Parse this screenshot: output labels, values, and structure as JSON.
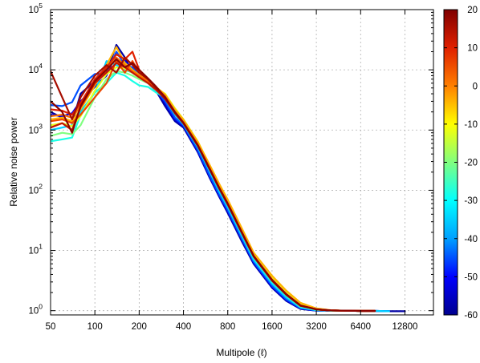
{
  "chart_data": {
    "type": "line",
    "title": "",
    "xlabel": "Multipole (ℓ)",
    "ylabel": "Relative noise power",
    "x_scale": "log2",
    "y_scale": "log10",
    "xlim": [
      50,
      20000
    ],
    "ylim": [
      0.85,
      100000
    ],
    "grid": true,
    "x_ticks": [
      {
        "value": 50,
        "label": "50"
      },
      {
        "value": 100,
        "label": "100"
      },
      {
        "value": 200,
        "label": "200"
      },
      {
        "value": 400,
        "label": "400"
      },
      {
        "value": 800,
        "label": "800"
      },
      {
        "value": 1600,
        "label": "1600"
      },
      {
        "value": 3200,
        "label": "3200"
      },
      {
        "value": 6400,
        "label": "6400"
      },
      {
        "value": 12800,
        "label": "12800"
      }
    ],
    "y_ticks": [
      {
        "value": 1,
        "base": "10",
        "exp": "0"
      },
      {
        "value": 10,
        "base": "10",
        "exp": "1"
      },
      {
        "value": 100,
        "base": "10",
        "exp": "2"
      },
      {
        "value": 1000,
        "base": "10",
        "exp": "3"
      },
      {
        "value": 10000,
        "base": "10",
        "exp": "4"
      },
      {
        "value": 100000,
        "base": "10",
        "exp": "5"
      }
    ],
    "colorbar": {
      "min": -60,
      "max": 20,
      "ticks": [
        "20",
        "10",
        "0",
        "-10",
        "-20",
        "-30",
        "-40",
        "-50",
        "-60"
      ],
      "colormap": [
        "#00008f",
        "#0000ff",
        "#00a0ff",
        "#00ffff",
        "#80ff80",
        "#ffff00",
        "#ff8000",
        "#e02000",
        "#800000"
      ]
    },
    "series": [
      {
        "color_value": -58,
        "x": [
          50,
          60,
          70,
          80,
          100,
          120,
          140,
          160,
          180,
          200,
          230,
          260,
          300,
          350,
          400,
          500,
          600,
          700,
          800,
          1000,
          1200,
          1600,
          2000,
          2500,
          3200,
          4000,
          5000,
          6400,
          8000,
          10000,
          12800
        ],
        "y": [
          2000,
          1600,
          1300,
          4000,
          6500,
          9000,
          26000,
          16000,
          9000,
          7500,
          6000,
          4500,
          2500,
          1400,
          1100,
          430,
          165,
          78,
          42,
          14,
          6.0,
          2.4,
          1.45,
          1.07,
          1.0,
          1.0,
          1.0,
          0.99,
          0.99,
          0.98,
          0.98
        ]
      },
      {
        "color_value": -52,
        "x": [
          50,
          60,
          70,
          80,
          100,
          120,
          140,
          160,
          180,
          200,
          230,
          260,
          300,
          350,
          400,
          500,
          600,
          700,
          800,
          1000,
          1200,
          1600,
          2000,
          2500,
          3200,
          4000,
          5000,
          6400,
          8000,
          10000
        ],
        "y": [
          1800,
          1700,
          1900,
          3000,
          5200,
          8000,
          19000,
          14000,
          10000,
          8000,
          6500,
          4800,
          2800,
          1500,
          1150,
          450,
          175,
          82,
          45,
          15,
          6.3,
          2.5,
          1.5,
          1.09,
          1.0,
          1.0,
          1.0,
          0.99,
          0.99,
          0.98
        ]
      },
      {
        "color_value": -45,
        "x": [
          50,
          60,
          70,
          80,
          100,
          120,
          140,
          160,
          180,
          200,
          230,
          260,
          300,
          350,
          400,
          500,
          600,
          700,
          800,
          1000,
          1200,
          1600,
          2000,
          2500,
          3200,
          4000,
          5000,
          6400,
          8000,
          10000
        ],
        "y": [
          2600,
          2500,
          2900,
          5500,
          8500,
          8500,
          20000,
          12000,
          11000,
          8500,
          6200,
          4500,
          3000,
          1600,
          1200,
          470,
          180,
          85,
          47,
          15.5,
          6.5,
          2.6,
          1.55,
          1.1,
          1.01,
          1.0,
          1.0,
          0.99,
          0.99,
          0.98
        ]
      },
      {
        "color_value": -35,
        "x": [
          50,
          60,
          70,
          80,
          100,
          120,
          140,
          160,
          180,
          200,
          230,
          260,
          300,
          350,
          400,
          500,
          600,
          700,
          800,
          1000,
          1200,
          1600,
          2000,
          2500,
          3200,
          4000,
          5000,
          6400,
          8000,
          10000
        ],
        "y": [
          1000,
          1100,
          1200,
          2000,
          4200,
          14000,
          12000,
          10000,
          9000,
          8000,
          6500,
          5200,
          3300,
          1800,
          1250,
          520,
          210,
          95,
          52,
          17,
          7.0,
          2.8,
          1.65,
          1.13,
          1.02,
          1.0,
          1.0,
          0.99,
          0.99,
          0.98
        ]
      },
      {
        "color_value": -28,
        "x": [
          50,
          60,
          70,
          80,
          100,
          120,
          140,
          160,
          180,
          200,
          230,
          260,
          300,
          350,
          400,
          500,
          600,
          700,
          800,
          1000,
          1200,
          1600,
          2000,
          2500,
          3200,
          4000,
          5000,
          6400,
          8000
        ],
        "y": [
          650,
          700,
          750,
          1800,
          4200,
          6000,
          9000,
          8000,
          6500,
          5500,
          5200,
          4200,
          3500,
          2000,
          1400,
          600,
          240,
          108,
          58,
          19,
          7.5,
          3.0,
          1.75,
          1.16,
          1.03,
          1.0,
          1.0,
          0.99,
          0.99
        ]
      },
      {
        "color_value": -20,
        "x": [
          50,
          60,
          70,
          80,
          100,
          120,
          140,
          160,
          180,
          200,
          230,
          260,
          300,
          350,
          400,
          500,
          600,
          700,
          800,
          1000,
          1200,
          1600,
          2000,
          2500,
          3200,
          4000,
          5000,
          6400,
          8000
        ],
        "y": [
          800,
          900,
          850,
          1200,
          3500,
          7000,
          9500,
          9000,
          8000,
          7000,
          6000,
          4600,
          3800,
          2100,
          1450,
          620,
          250,
          115,
          62,
          20,
          8.0,
          3.2,
          1.85,
          1.2,
          1.04,
          1.0,
          1.0,
          0.99,
          0.99
        ]
      },
      {
        "color_value": -12,
        "x": [
          50,
          60,
          70,
          80,
          100,
          120,
          140,
          160,
          180,
          200,
          230,
          260,
          300,
          350,
          400,
          500,
          600,
          700,
          800,
          1000,
          1200,
          1600,
          2000,
          2500,
          3200,
          4000,
          5000,
          6400,
          8000
        ],
        "y": [
          1200,
          1300,
          1150,
          1700,
          4500,
          8500,
          11000,
          10500,
          9000,
          7500,
          6200,
          5000,
          4000,
          2300,
          1500,
          650,
          265,
          122,
          66,
          21,
          8.6,
          3.5,
          2.0,
          1.27,
          1.06,
          1.01,
          1.0,
          0.99,
          0.99
        ]
      },
      {
        "color_value": -4,
        "x": [
          50,
          60,
          70,
          80,
          100,
          120,
          140,
          160,
          180,
          200,
          230,
          260,
          300,
          350,
          400,
          500,
          600,
          700,
          800,
          1000,
          1200,
          1600,
          2000,
          2500,
          3200,
          4000,
          5000,
          6400,
          8000
        ],
        "y": [
          1500,
          1600,
          1400,
          2200,
          5500,
          12000,
          24000,
          13000,
          10000,
          8200,
          6500,
          5200,
          3900,
          2200,
          1480,
          640,
          270,
          128,
          70,
          23,
          9.2,
          3.8,
          2.15,
          1.35,
          1.09,
          1.02,
          1.0,
          0.99,
          0.99
        ]
      },
      {
        "color_value": 2,
        "x": [
          50,
          60,
          70,
          80,
          100,
          120,
          140,
          160,
          180,
          200,
          230,
          260,
          300,
          350,
          400,
          500,
          600,
          700,
          800,
          1000,
          1200,
          1600,
          2000,
          2500,
          3200,
          4000,
          5000,
          6400,
          8000
        ],
        "y": [
          1700,
          1800,
          1600,
          2500,
          6000,
          10000,
          16000,
          12000,
          9500,
          8000,
          6300,
          5000,
          3600,
          2000,
          1350,
          580,
          240,
          112,
          61,
          20,
          8.2,
          3.3,
          1.9,
          1.23,
          1.05,
          1.01,
          1.0,
          0.99,
          0.99
        ]
      },
      {
        "color_value": 6,
        "x": [
          50,
          60,
          70,
          80,
          100,
          120,
          140,
          160,
          180,
          200,
          230,
          260,
          300,
          350,
          400,
          500,
          600,
          700,
          800,
          1000,
          1200,
          1600,
          2000,
          2500,
          3200,
          4000,
          5000,
          6400,
          8000
        ],
        "y": [
          1400,
          1500,
          1300,
          1800,
          3500,
          6000,
          14000,
          9000,
          14000,
          9000,
          6800,
          5100,
          3500,
          1950,
          1300,
          560,
          230,
          108,
          59,
          19.5,
          8.0,
          3.2,
          1.85,
          1.21,
          1.05,
          1.01,
          1.0,
          0.99,
          0.99
        ]
      },
      {
        "color_value": 10,
        "x": [
          50,
          60,
          70,
          80,
          100,
          120,
          140,
          160,
          180,
          200,
          230,
          260,
          300,
          350,
          400,
          500,
          600,
          700,
          800,
          1000,
          1200,
          1600,
          2000,
          2500,
          3200,
          4000,
          5000,
          6400,
          8000
        ],
        "y": [
          2200,
          2100,
          1800,
          2800,
          7000,
          11000,
          18000,
          15000,
          20000,
          10000,
          7000,
          5200,
          3600,
          2000,
          1320,
          570,
          235,
          110,
          60,
          19.8,
          8.1,
          3.25,
          1.88,
          1.22,
          1.05,
          1.01,
          1.0,
          0.99,
          0.99
        ]
      },
      {
        "color_value": 13,
        "x": [
          50,
          60,
          70,
          80,
          100,
          120,
          140,
          160,
          180,
          200,
          230,
          260,
          300,
          350,
          400,
          500,
          600,
          700,
          800,
          1000,
          1200,
          1600,
          2000,
          2500,
          3200,
          4000,
          5000,
          6400,
          8000
        ],
        "y": [
          1100,
          1300,
          1000,
          2400,
          6000,
          9000,
          13000,
          11000,
          9000,
          7500,
          6000,
          4700,
          3300,
          1900,
          1280,
          550,
          228,
          107,
          58,
          19.2,
          7.9,
          3.15,
          1.83,
          1.2,
          1.05,
          1.01,
          1.0,
          0.99,
          0.99
        ]
      },
      {
        "color_value": 16,
        "x": [
          50,
          60,
          70,
          80,
          100,
          120,
          140,
          160,
          180,
          200,
          230,
          260,
          300,
          350,
          400,
          500,
          600,
          700,
          800,
          1000,
          1200,
          1600,
          2000,
          2500,
          3200,
          4000,
          5000,
          6400,
          8000
        ],
        "y": [
          9500,
          3500,
          1500,
          3500,
          8000,
          12000,
          9000,
          16000,
          12000,
          9000,
          7000,
          5000,
          3400,
          1950,
          1300,
          555,
          230,
          108,
          59,
          19.5,
          8.0,
          3.2,
          1.85,
          1.21,
          1.05,
          1.01,
          1.0,
          0.99,
          0.99
        ]
      },
      {
        "color_value": 19,
        "x": [
          50,
          60,
          70,
          80,
          100,
          120,
          140,
          160,
          180,
          200,
          230,
          260,
          300,
          350,
          400,
          500,
          600,
          700,
          800,
          1000,
          1200,
          1600,
          2000,
          2500,
          3200,
          4000,
          5000,
          6400,
          8000
        ],
        "y": [
          3000,
          2000,
          900,
          2500,
          6500,
          10000,
          15000,
          11000,
          13000,
          10000,
          7200,
          5300,
          3500,
          2000,
          1310,
          560,
          232,
          109,
          60,
          19.7,
          8.1,
          3.22,
          1.87,
          1.22,
          1.05,
          1.01,
          1.0,
          0.99,
          0.99
        ]
      }
    ]
  }
}
